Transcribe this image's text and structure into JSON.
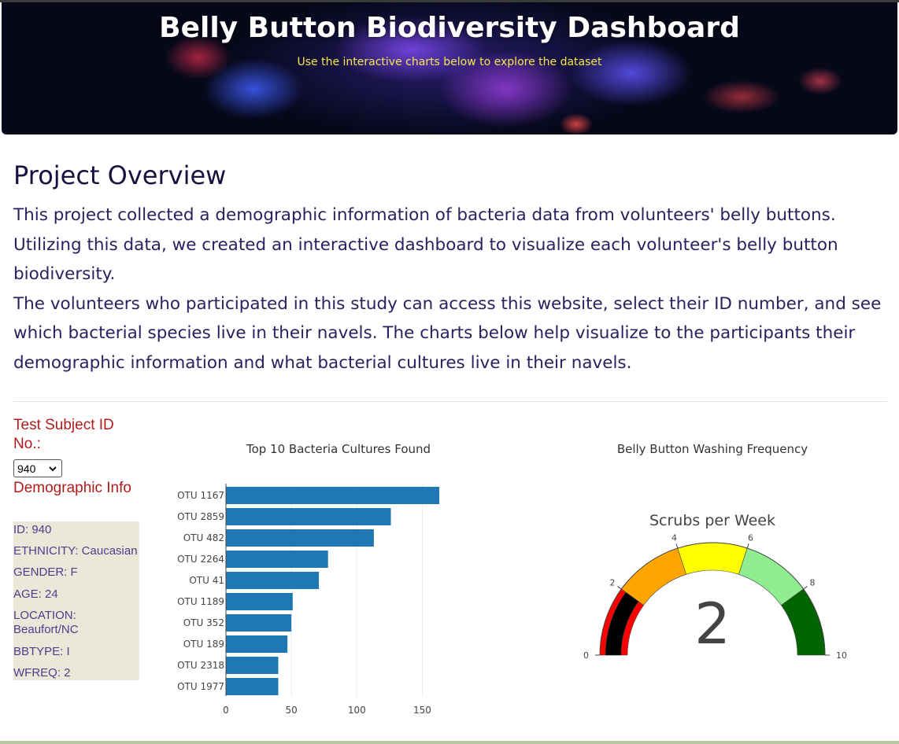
{
  "header": {
    "title": "Belly Button Biodiversity Dashboard",
    "subtitle": "Use the interactive charts below to explore the dataset"
  },
  "overview": {
    "title": "Project Overview",
    "paragraph1": "This project collected a demographic information of bacteria data from volunteers' belly buttons. Utilizing this data, we created an interactive dashboard to visualize each volunteer's belly button biodiversity.",
    "paragraph2": "The volunteers who participated in this study can access this website, select their ID number, and see which bacterial species live in their navels. The charts below help visualize to the participants their demographic information and what bacterial cultures live in their navels."
  },
  "selector": {
    "label": "Test Subject ID No.:",
    "selected": "940"
  },
  "demographics": {
    "heading": "Demographic Info",
    "items": [
      "ID: 940",
      "ETHNICITY: Caucasian",
      "GENDER: F",
      "AGE: 24",
      "LOCATION: Beaufort/NC",
      "BBTYPE: I",
      "WFREQ: 2"
    ]
  },
  "chart_data": [
    {
      "type": "bar",
      "orientation": "horizontal",
      "title": "Top 10 Bacteria Cultures Found",
      "categories": [
        "OTU 1167",
        "OTU 2859",
        "OTU 482",
        "OTU 2264",
        "OTU 41",
        "OTU 1189",
        "OTU 352",
        "OTU 189",
        "OTU 2318",
        "OTU 1977"
      ],
      "values": [
        163,
        126,
        113,
        78,
        71,
        51,
        50,
        47,
        40,
        40
      ],
      "xticks": [
        0,
        50,
        100,
        150
      ],
      "xlim": [
        0,
        172
      ],
      "color": "#1f77b4",
      "grid": true
    },
    {
      "type": "gauge",
      "title": "Belly Button Washing Frequency",
      "gauge_title": "Scrubs per Week",
      "value": 2,
      "range": [
        0,
        10
      ],
      "ticks": [
        0,
        2,
        4,
        6,
        8,
        10
      ],
      "steps": [
        {
          "range": [
            0,
            2
          ],
          "color": "#ff0000"
        },
        {
          "range": [
            2,
            4
          ],
          "color": "#ffa500"
        },
        {
          "range": [
            4,
            6
          ],
          "color": "#ffff00"
        },
        {
          "range": [
            6,
            8
          ],
          "color": "#90ee90"
        },
        {
          "range": [
            8,
            10
          ],
          "color": "#006400"
        }
      ],
      "bar_color": "#000000"
    }
  ]
}
